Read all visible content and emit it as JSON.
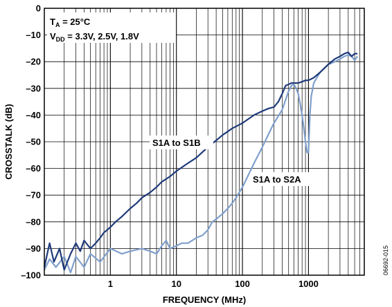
{
  "chart_data": {
    "type": "line",
    "xlabel": "FREQUENCY (MHz)",
    "ylabel": "CROSSTALK (dB)",
    "x_scale": "log",
    "xlim": [
      0.1,
      7000
    ],
    "ylim": [
      -100,
      0
    ],
    "x_ticks": [
      1,
      10,
      100,
      1000
    ],
    "x_tick_labels": [
      "1",
      "10",
      "100",
      "1000"
    ],
    "y_ticks": [
      0,
      -10,
      -20,
      -30,
      -40,
      -50,
      -60,
      -70,
      -80,
      -90,
      -100
    ],
    "y_tick_labels": [
      "0",
      "–10",
      "–20",
      "–30",
      "–40",
      "–50",
      "–60",
      "–70",
      "–80",
      "–90",
      "–100"
    ],
    "grid": true,
    "annotation": {
      "ta_main": "T",
      "ta_sub": "A",
      "ta_rest": " = 25°C",
      "vdd_main": "V",
      "vdd_sub": "DD",
      "vdd_rest": " = 3.3V, 2.5V, 1.8V"
    },
    "figure_id": "06692-015",
    "series": [
      {
        "name": "S1A to S1B",
        "color": "#1f3a7a",
        "x": [
          0.1,
          0.12,
          0.14,
          0.17,
          0.2,
          0.25,
          0.3,
          0.35,
          0.4,
          0.5,
          0.6,
          0.7,
          0.8,
          0.9,
          1.0,
          1.2,
          1.5,
          2,
          2.5,
          3,
          4,
          5,
          6,
          8,
          10,
          15,
          20,
          30,
          40,
          50,
          70,
          100,
          150,
          200,
          250,
          300,
          350,
          400,
          450,
          500,
          550,
          600,
          700,
          800,
          900,
          1000,
          1200,
          1500,
          2000,
          2500,
          3000,
          3500,
          4000,
          4500,
          5000,
          5500
        ],
        "y": [
          -97,
          -88,
          -95,
          -90,
          -98,
          -92,
          -88,
          -91,
          -87,
          -90,
          -88,
          -86,
          -84,
          -83,
          -82,
          -80,
          -78,
          -75,
          -73,
          -71,
          -69,
          -67,
          -65,
          -63,
          -61,
          -58,
          -56,
          -52,
          -49.5,
          -47.5,
          -45,
          -43,
          -40,
          -38.5,
          -37.5,
          -37,
          -35,
          -32,
          -29,
          -28.5,
          -28,
          -28,
          -28,
          -27.5,
          -27,
          -27,
          -26,
          -24,
          -21,
          -19,
          -18,
          -17,
          -16.5,
          -18,
          -17,
          -17
        ]
      },
      {
        "name": "S1A to S2A",
        "color": "#7f9fcc",
        "x": [
          0.1,
          0.12,
          0.15,
          0.2,
          0.25,
          0.3,
          0.4,
          0.5,
          0.7,
          1.0,
          1.5,
          2,
          3,
          4,
          5,
          6,
          7,
          8,
          10,
          12,
          15,
          20,
          25,
          30,
          35,
          40,
          50,
          60,
          70,
          80,
          100,
          120,
          150,
          200,
          250,
          300,
          400,
          500,
          550,
          600,
          650,
          700,
          750,
          800,
          850,
          900,
          950,
          1000,
          1050,
          1100,
          1200,
          1500,
          2000,
          2500,
          3000,
          3500,
          4000,
          4500,
          5000,
          5500
        ],
        "y": [
          -98,
          -94,
          -97,
          -93,
          -99,
          -93,
          -97,
          -92,
          -95,
          -90,
          -92,
          -91,
          -90,
          -91,
          -92,
          -89,
          -87,
          -90,
          -89,
          -88,
          -88,
          -86,
          -85,
          -83,
          -80,
          -79,
          -77,
          -75,
          -73,
          -71,
          -67,
          -63,
          -58,
          -52,
          -47,
          -43,
          -38,
          -31,
          -29,
          -28.5,
          -30,
          -32,
          -36,
          -40,
          -45,
          -50,
          -54,
          -54,
          -40,
          -33,
          -28,
          -24,
          -21,
          -20,
          -19,
          -18,
          -17.5,
          -18,
          -19.5,
          -18
        ]
      }
    ]
  }
}
